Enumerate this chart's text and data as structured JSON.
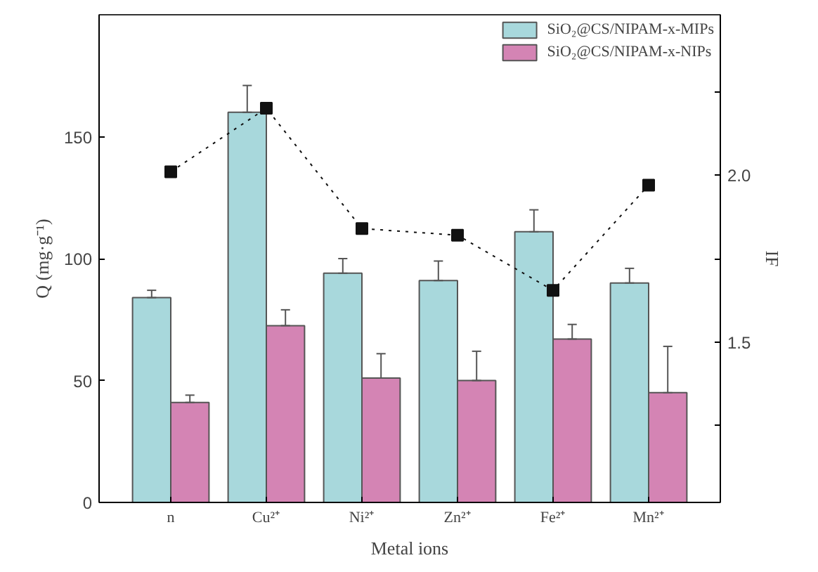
{
  "chart_data": {
    "type": "bar",
    "categories": [
      "n",
      "Cu²⁺",
      "Ni²⁺",
      "Zn²⁺",
      "Fe²⁺",
      "Mn²⁺"
    ],
    "xlabel": "Metal ions",
    "ylabel": "Q (mg·g⁻¹)",
    "y2label": "IF",
    "ylim": [
      0,
      200
    ],
    "yticks": [
      0,
      50,
      100,
      150
    ],
    "y2lim": [
      1.02,
      2.48
    ],
    "y2ticks": [
      {
        "value": 1.25,
        "label": null
      },
      1.5,
      {
        "value": 1.75,
        "label": null
      },
      {
        "value": 2.0,
        "label": "2.0"
      },
      {
        "value": 2.25,
        "label": null
      }
    ],
    "series": [
      {
        "name": "SiO₂@CS/NIPAM-x-MIPs",
        "color": "#a8d8dc",
        "values": [
          84,
          160,
          94,
          91,
          111,
          90
        ],
        "errors": [
          [
            84,
            87
          ],
          [
            160,
            171
          ],
          [
            94,
            100
          ],
          [
            91,
            99
          ],
          [
            111,
            120
          ],
          [
            90,
            96
          ]
        ]
      },
      {
        "name": "SiO₂@CS/NIPAM-x-NIPs",
        "color": "#d484b4",
        "values": [
          41,
          72.5,
          51,
          50,
          67,
          45
        ],
        "errors": [
          [
            41,
            44
          ],
          [
            72.5,
            79
          ],
          [
            51,
            61
          ],
          [
            50,
            62
          ],
          [
            67,
            73
          ],
          [
            45,
            64
          ]
        ]
      },
      {
        "type": "line",
        "axis": "y2",
        "color": "#111111",
        "marker": "square",
        "line_style": "dotted",
        "values": [
          2.01,
          2.2,
          1.84,
          1.82,
          1.655,
          1.97
        ]
      }
    ],
    "legend": "top right",
    "grid": false
  }
}
